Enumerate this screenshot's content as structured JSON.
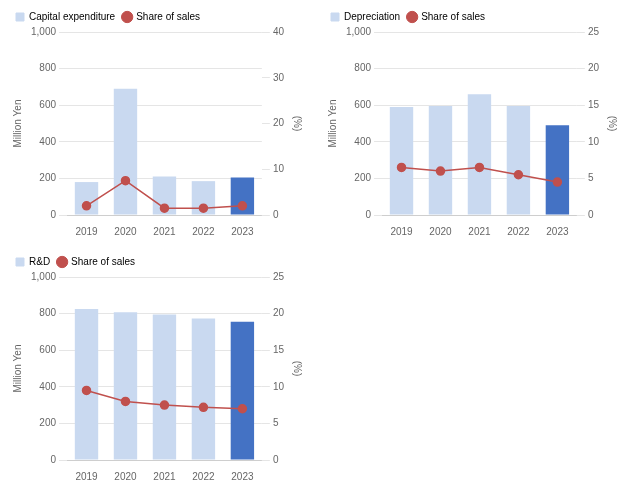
{
  "chart_data": [
    {
      "type": "bar",
      "categories": [
        "2019",
        "2020",
        "2021",
        "2022",
        "2023"
      ],
      "series": [
        {
          "name": "Capital expenditure",
          "type": "bar",
          "color": "#c9d9f0",
          "colors": [
            "#c9d9f0",
            "#c9d9f0",
            "#c9d9f0",
            "#c9d9f0",
            "#4472c4"
          ],
          "values": [
            180,
            690,
            210,
            185,
            205
          ]
        },
        {
          "name": "Share of sales",
          "type": "line",
          "axis": "y2",
          "color": "#c0504d",
          "marker": "circle",
          "values": [
            2.0,
            7.5,
            1.5,
            1.5,
            2.0
          ]
        }
      ],
      "ylabel": "Million Yen",
      "y2label": "(%)",
      "ylim": [
        0,
        1000
      ],
      "yticks": [
        0,
        200,
        400,
        600,
        800,
        {
          "value": 1000,
          "label": "1,000"
        }
      ],
      "y2lim": [
        0,
        40
      ],
      "y2ticks": [
        0,
        10,
        20,
        30,
        40
      ],
      "grid": true,
      "legend": "top"
    },
    {
      "type": "bar",
      "categories": [
        "2019",
        "2020",
        "2021",
        "2022",
        "2023"
      ],
      "series": [
        {
          "name": "Depreciation",
          "type": "bar",
          "color": "#c9d9f0",
          "colors": [
            "#c9d9f0",
            "#c9d9f0",
            "#c9d9f0",
            "#c9d9f0",
            "#4472c4"
          ],
          "values": [
            590,
            595,
            660,
            595,
            490
          ]
        },
        {
          "name": "Share of sales",
          "type": "line",
          "axis": "y2",
          "color": "#c0504d",
          "marker": "circle",
          "values": [
            6.5,
            6.0,
            6.5,
            5.5,
            4.5
          ]
        }
      ],
      "ylabel": "Million Yen",
      "y2label": "(%)",
      "ylim": [
        0,
        1000
      ],
      "yticks": [
        0,
        200,
        400,
        600,
        800,
        {
          "value": 1000,
          "label": "1,000"
        }
      ],
      "y2lim": [
        0,
        25
      ],
      "y2ticks": [
        0,
        5,
        10,
        15,
        20,
        25
      ],
      "grid": true,
      "legend": "top"
    },
    {
      "type": "bar",
      "categories": [
        "2019",
        "2020",
        "2021",
        "2022",
        "2023"
      ],
      "series": [
        {
          "name": "R&D",
          "type": "bar",
          "color": "#c9d9f0",
          "colors": [
            "#c9d9f0",
            "#c9d9f0",
            "#c9d9f0",
            "#c9d9f0",
            "#4472c4"
          ],
          "values": [
            825,
            808,
            795,
            773,
            755
          ]
        },
        {
          "name": "Share of sales",
          "type": "line",
          "axis": "y2",
          "color": "#c0504d",
          "marker": "circle",
          "values": [
            9.5,
            8.0,
            7.5,
            7.2,
            7.0
          ]
        }
      ],
      "ylabel": "Million Yen",
      "y2label": "(%)",
      "ylim": [
        0,
        1000
      ],
      "yticks": [
        0,
        200,
        400,
        600,
        800,
        {
          "value": 1000,
          "label": "1,000"
        }
      ],
      "y2lim": [
        0,
        25
      ],
      "y2ticks": [
        0,
        5,
        10,
        15,
        20,
        25
      ],
      "grid": true,
      "legend": "top"
    }
  ]
}
